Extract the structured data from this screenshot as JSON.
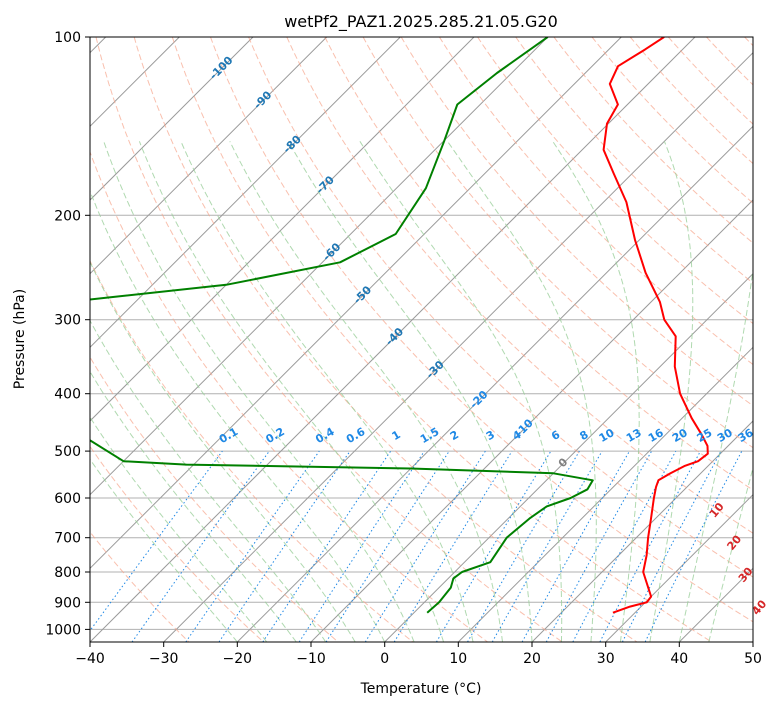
{
  "chart_data": {
    "type": "skew-t",
    "title": "wetPf2_PAZ1.2025.285.21.05.G20",
    "xlabel": "Temperature (°C)",
    "ylabel": "Pressure (hPa)",
    "xlim": [
      -40,
      50
    ],
    "ylim_hpa": [
      1050,
      100
    ],
    "x_ticks": [
      -40,
      -30,
      -20,
      -10,
      0,
      10,
      20,
      30,
      40,
      50
    ],
    "y_ticks": [
      1000,
      900,
      800,
      700,
      600,
      500,
      400,
      300,
      200,
      100
    ],
    "colors": {
      "temperature": "#ff0000",
      "dewpoint": "#008000",
      "isotherm": "#9a9a9a",
      "dry_adiabat": "#f6a58c",
      "moist_adiabat": "#9ccf9c",
      "mixing_ratio": "#1e88e5",
      "isotherm_label": "#1f77b4",
      "moist_label": "#d62728",
      "zero_label": "#808080"
    },
    "series": [
      {
        "name": "temperature",
        "points": [
          {
            "p": 937,
            "t": 27.0
          },
          {
            "p": 915,
            "t": 28.5
          },
          {
            "p": 900,
            "t": 30.2
          },
          {
            "p": 880,
            "t": 30.0
          },
          {
            "p": 850,
            "t": 28.4
          },
          {
            "p": 800,
            "t": 25.6
          },
          {
            "p": 750,
            "t": 23.8
          },
          {
            "p": 700,
            "t": 21.6
          },
          {
            "p": 650,
            "t": 19.4
          },
          {
            "p": 600,
            "t": 17.0
          },
          {
            "p": 575,
            "t": 15.8
          },
          {
            "p": 560,
            "t": 15.2
          },
          {
            "p": 545,
            "t": 15.9
          },
          {
            "p": 530,
            "t": 16.8
          },
          {
            "p": 520,
            "t": 18.0
          },
          {
            "p": 505,
            "t": 18.3
          },
          {
            "p": 490,
            "t": 17.2
          },
          {
            "p": 470,
            "t": 15.0
          },
          {
            "p": 440,
            "t": 11.3
          },
          {
            "p": 400,
            "t": 6.4
          },
          {
            "p": 360,
            "t": 2.0
          },
          {
            "p": 320,
            "t": -2.0
          },
          {
            "p": 300,
            "t": -5.8
          },
          {
            "p": 280,
            "t": -8.8
          },
          {
            "p": 250,
            "t": -14.7
          },
          {
            "p": 220,
            "t": -20.6
          },
          {
            "p": 190,
            "t": -26.9
          },
          {
            "p": 170,
            "t": -32.5
          },
          {
            "p": 155,
            "t": -37.1
          },
          {
            "p": 140,
            "t": -40.2
          },
          {
            "p": 130,
            "t": -41.3
          },
          {
            "p": 120,
            "t": -45.2
          },
          {
            "p": 112,
            "t": -46.5
          },
          {
            "p": 105,
            "t": -45.1
          },
          {
            "p": 100,
            "t": -44.2
          }
        ]
      },
      {
        "name": "dewpoint",
        "points": [
          {
            "p": 937,
            "t": 1.8
          },
          {
            "p": 900,
            "t": 2.0
          },
          {
            "p": 850,
            "t": 1.6
          },
          {
            "p": 820,
            "t": 0.7
          },
          {
            "p": 800,
            "t": 1.0
          },
          {
            "p": 770,
            "t": 3.5
          },
          {
            "p": 700,
            "t": 2.4
          },
          {
            "p": 650,
            "t": 2.9
          },
          {
            "p": 620,
            "t": 3.6
          },
          {
            "p": 600,
            "t": 5.7
          },
          {
            "p": 580,
            "t": 6.8
          },
          {
            "p": 560,
            "t": 6.3
          },
          {
            "p": 545,
            "t": 0.0
          },
          {
            "p": 535,
            "t": -20.0
          },
          {
            "p": 527,
            "t": -51.0
          },
          {
            "p": 520,
            "t": -60.0
          },
          {
            "p": 300,
            "t": -110.0
          },
          {
            "p": 275,
            "t": -84.0
          },
          {
            "p": 262,
            "t": -70.0
          },
          {
            "p": 240,
            "t": -57.6
          },
          {
            "p": 215,
            "t": -53.9
          },
          {
            "p": 180,
            "t": -56.0
          },
          {
            "p": 150,
            "t": -59.9
          },
          {
            "p": 130,
            "t": -63.1
          },
          {
            "p": 115,
            "t": -62.0
          },
          {
            "p": 100,
            "t": -60.0
          }
        ]
      }
    ],
    "isotherm_labels": [
      "-100",
      "-90",
      "-80",
      "-70",
      "-60",
      "-50",
      "-40",
      "-30",
      "-20",
      "-10",
      "0"
    ],
    "mixing_ratio_labels": [
      "0.1",
      "0.2",
      "0.4",
      "0.6",
      "1",
      "1.5",
      "2",
      "3",
      "4",
      "6",
      "8",
      "10",
      "13",
      "16",
      "20",
      "25",
      "30",
      "36"
    ],
    "moist_adiabat_labels": [
      "10",
      "20",
      "30",
      "40"
    ]
  }
}
